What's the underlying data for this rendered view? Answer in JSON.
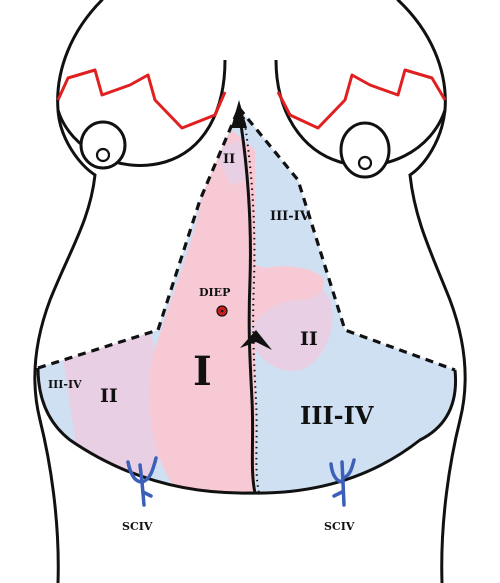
{
  "zones": {
    "zone_1": "I",
    "zone_2_left": "II",
    "zone_2_right": "II",
    "zone_2_top": "II",
    "zone_34_left": "III-IV",
    "zone_34_right": "III-IV",
    "zone_34_top": "III-IV"
  },
  "vessels": {
    "perforator": "DIEP",
    "left_vein": "SCIV",
    "right_vein": "SCIV"
  },
  "colors": {
    "zone_1": "#f7c9d4",
    "zone_2": "#e9cfe3",
    "zone_34": "#cfe0f2",
    "outline": "#111111",
    "areola_red": "#e02020",
    "vein": "#3c5fb8",
    "perforator_dot": "#d21d1d"
  }
}
